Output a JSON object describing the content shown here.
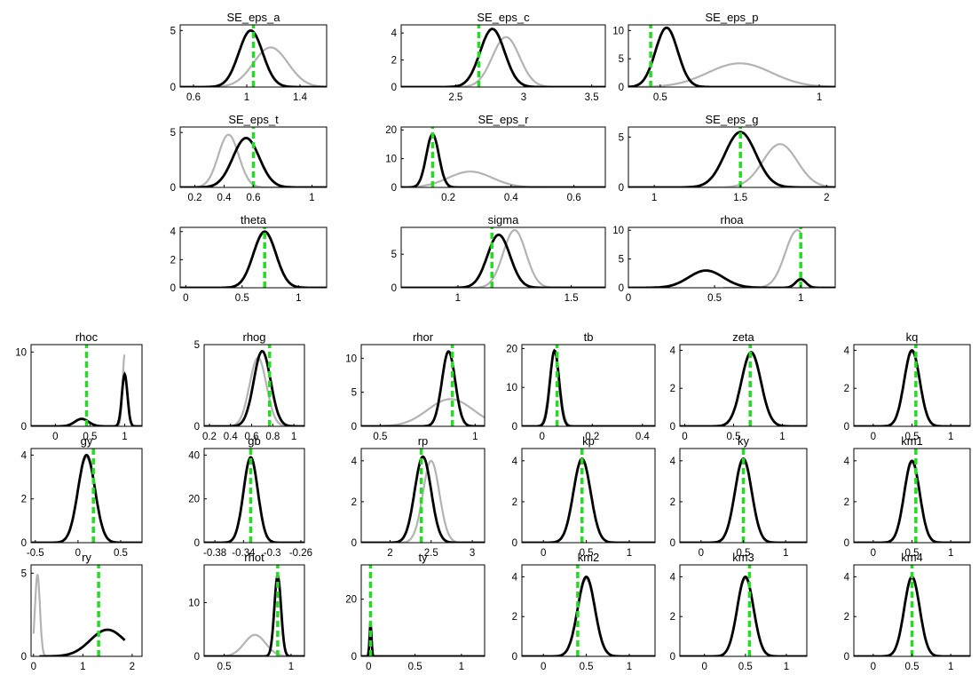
{
  "chart_data": [
    {
      "type": "line",
      "title": "SE_eps_a",
      "xticks": [
        "0.6",
        "1",
        "1.4"
      ],
      "yticks": [
        "0",
        "5"
      ],
      "xlim": [
        0.5,
        1.6
      ],
      "ylim": [
        0,
        5.5
      ],
      "mode": 1.05,
      "posterior": {
        "mu": 1.03,
        "sd": 0.09,
        "peak": 5.0
      },
      "prior": {
        "mu": 1.18,
        "sd": 0.13,
        "peak": 3.5
      }
    },
    {
      "type": "line",
      "title": "SE_eps_c",
      "xticks": [
        "2.5",
        "3",
        "3.5"
      ],
      "yticks": [
        "0",
        "2",
        "4"
      ],
      "xlim": [
        2.1,
        3.6
      ],
      "ylim": [
        0,
        4.6
      ],
      "mode": 2.67,
      "posterior": {
        "mu": 2.77,
        "sd": 0.09,
        "peak": 4.3
      },
      "prior": {
        "mu": 2.87,
        "sd": 0.1,
        "peak": 3.7
      }
    },
    {
      "type": "line",
      "title": "SE_eps_p",
      "xticks": [
        "0.5",
        "1"
      ],
      "yticks": [
        "0",
        "5",
        "10"
      ],
      "xlim": [
        0.4,
        1.05
      ],
      "ylim": [
        0,
        11
      ],
      "mode": 0.47,
      "posterior": {
        "mu": 0.52,
        "sd": 0.035,
        "peak": 10.5
      },
      "prior": {
        "mu": 0.75,
        "sd": 0.1,
        "peak": 4.2
      }
    },
    {
      "type": "line",
      "title": "SE_eps_t",
      "xticks": [
        "0.2",
        "0.4",
        "0.6",
        "1"
      ],
      "yticks": [
        "0",
        "5"
      ],
      "xlim": [
        0.1,
        1.1
      ],
      "ylim": [
        0,
        5.5
      ],
      "mode": 0.6,
      "posterior": {
        "mu": 0.55,
        "sd": 0.09,
        "peak": 4.5
      },
      "prior": {
        "mu": 0.43,
        "sd": 0.07,
        "peak": 4.8
      }
    },
    {
      "type": "line",
      "title": "SE_eps_r",
      "xticks": [
        "0.2",
        "0.4",
        "0.6"
      ],
      "yticks": [
        "0",
        "10",
        "20"
      ],
      "xlim": [
        0.05,
        0.7
      ],
      "ylim": [
        0,
        21
      ],
      "mode": 0.15,
      "posterior": {
        "mu": 0.15,
        "sd": 0.02,
        "peak": 18.5
      },
      "prior": {
        "mu": 0.27,
        "sd": 0.07,
        "peak": 5.5
      }
    },
    {
      "type": "line",
      "title": "SE_eps_g",
      "xticks": [
        "1",
        "1.5",
        "2"
      ],
      "yticks": [
        "0",
        "5"
      ],
      "xlim": [
        0.85,
        2.05
      ],
      "ylim": [
        0,
        6
      ],
      "mode": 1.5,
      "posterior": {
        "mu": 1.5,
        "sd": 0.09,
        "peak": 5.5
      },
      "prior": {
        "mu": 1.73,
        "sd": 0.1,
        "peak": 4.3
      }
    },
    {
      "type": "line",
      "title": "theta",
      "xticks": [
        "0",
        "0.5",
        "1"
      ],
      "yticks": [
        "0",
        "2",
        "4"
      ],
      "xlim": [
        -0.05,
        1.25
      ],
      "ylim": [
        0,
        4.3
      ],
      "mode": 0.7,
      "posterior": {
        "mu": 0.7,
        "sd": 0.1,
        "peak": 4.0
      },
      "prior": {
        "mu": 0.7,
        "sd": 0.1,
        "peak": 3.9
      }
    },
    {
      "type": "line",
      "title": "sigma",
      "xticks": [
        "1",
        "1.5"
      ],
      "yticks": [
        "0",
        "5"
      ],
      "xlim": [
        0.75,
        1.65
      ],
      "ylim": [
        0,
        9
      ],
      "mode": 1.15,
      "posterior": {
        "mu": 1.18,
        "sd": 0.05,
        "peak": 7.9
      },
      "prior": {
        "mu": 1.25,
        "sd": 0.05,
        "peak": 8.6
      }
    },
    {
      "type": "line",
      "title": "rhoa",
      "xticks": [
        "0",
        "0.5",
        "1"
      ],
      "yticks": [
        "0",
        "5",
        "10"
      ],
      "xlim": [
        0,
        1.2
      ],
      "ylim": [
        0,
        10.5
      ],
      "mode": 1.0,
      "posterior": {
        "mixture": [
          [
            0.45,
            0.1,
            3.0
          ],
          [
            1.0,
            0.03,
            1.5
          ]
        ]
      },
      "prior": {
        "mixture": [
          [
            0.98,
            0.07,
            10.0
          ]
        ],
        "xmin": 0.55,
        "xmax": 1.0
      }
    },
    {
      "type": "line",
      "title": "rhoc",
      "xticks": [
        "0",
        "0.5",
        "1"
      ],
      "yticks": [
        "0",
        "10"
      ],
      "xlim": [
        -0.35,
        1.25
      ],
      "ylim": [
        0,
        11
      ],
      "mode": 0.45,
      "posterior": {
        "mixture": [
          [
            0.38,
            0.1,
            1.0
          ],
          [
            1.0,
            0.04,
            7.0
          ]
        ]
      },
      "prior": {
        "mixture": [
          [
            1.0,
            0.03,
            9.6
          ]
        ],
        "xmin": 0.85,
        "xmax": 1.0
      }
    },
    {
      "type": "line",
      "title": "rhog",
      "xticks": [
        "0.2",
        "0.4",
        "0.6",
        "0.8",
        "1"
      ],
      "yticks": [
        "0",
        "5"
      ],
      "xlim": [
        0.15,
        1.1
      ],
      "ylim": [
        0,
        5
      ],
      "mode": 0.77,
      "posterior": {
        "mu": 0.7,
        "sd": 0.08,
        "peak": 4.6
      },
      "prior": {
        "mu": 0.66,
        "sd": 0.08,
        "peak": 4.2
      }
    },
    {
      "type": "line",
      "title": "rhor",
      "xticks": [
        "0.5",
        "1"
      ],
      "yticks": [
        "0",
        "5",
        "10"
      ],
      "xlim": [
        0.4,
        1.05
      ],
      "ylim": [
        0,
        12
      ],
      "mode": 0.88,
      "posterior": {
        "mu": 0.86,
        "sd": 0.035,
        "peak": 11.0
      },
      "prior": {
        "mu": 0.87,
        "sd": 0.12,
        "peak": 4.0
      }
    },
    {
      "type": "line",
      "title": "tb",
      "xticks": [
        "0",
        "0.2",
        "0.4"
      ],
      "yticks": [
        "0",
        "10",
        "20"
      ],
      "xlim": [
        -0.08,
        0.45
      ],
      "ylim": [
        0,
        21
      ],
      "mode": 0.06,
      "posterior": {
        "mu": 0.05,
        "sd": 0.018,
        "peak": 19.5
      },
      "prior": {
        "mu": 0.05,
        "sd": 0.02,
        "peak": 19.0
      }
    },
    {
      "type": "line",
      "title": "zeta",
      "xticks": [
        "0",
        "0.5",
        "1"
      ],
      "yticks": [
        "0",
        "2",
        "4"
      ],
      "xlim": [
        -0.05,
        1.25
      ],
      "ylim": [
        0,
        4.3
      ],
      "mode": 0.67,
      "posterior": {
        "mu": 0.68,
        "sd": 0.1,
        "peak": 3.9
      },
      "prior": {
        "mu": 0.68,
        "sd": 0.1,
        "peak": 3.8
      }
    },
    {
      "type": "line",
      "title": "kq",
      "xticks": [
        "0",
        "0.5",
        "1"
      ],
      "yticks": [
        "0",
        "2",
        "4"
      ],
      "xlim": [
        -0.25,
        1.25
      ],
      "ylim": [
        0,
        4.3
      ],
      "mode": 0.55,
      "posterior": {
        "mu": 0.5,
        "sd": 0.1,
        "peak": 4.0
      },
      "prior": {
        "mu": 0.5,
        "sd": 0.1,
        "peak": 3.9
      }
    },
    {
      "type": "line",
      "title": "gy",
      "xticks": [
        "-0.5",
        "0",
        "0.5"
      ],
      "yticks": [
        "0",
        "2",
        "4"
      ],
      "xlim": [
        -0.55,
        0.75
      ],
      "ylim": [
        0,
        4.3
      ],
      "mode": 0.18,
      "posterior": {
        "mu": 0.1,
        "sd": 0.1,
        "peak": 4.0
      },
      "prior": {
        "mu": 0.1,
        "sd": 0.1,
        "peak": 3.9
      }
    },
    {
      "type": "line",
      "title": "gb",
      "xticks": [
        "-0.38",
        "-0.34",
        "-0.3",
        "-0.26"
      ],
      "yticks": [
        "0",
        "20",
        "40"
      ],
      "xlim": [
        -0.395,
        -0.255
      ],
      "ylim": [
        0,
        43
      ],
      "mode": -0.33,
      "posterior": {
        "mu": -0.33,
        "sd": 0.01,
        "peak": 39
      },
      "prior": {
        "mu": -0.33,
        "sd": 0.01,
        "peak": 38
      }
    },
    {
      "type": "line",
      "title": "rp",
      "xticks": [
        "2",
        "2.5",
        "3"
      ],
      "yticks": [
        "0",
        "2",
        "4"
      ],
      "xlim": [
        1.65,
        3.15
      ],
      "ylim": [
        0,
        4.6
      ],
      "mode": 2.38,
      "posterior": {
        "mu": 2.4,
        "sd": 0.1,
        "peak": 4.2
      },
      "prior": {
        "mu": 2.5,
        "sd": 0.1,
        "peak": 4.0
      }
    },
    {
      "type": "line",
      "title": "kp",
      "xticks": [
        "0",
        "0.5",
        "1"
      ],
      "yticks": [
        "0",
        "2",
        "4"
      ],
      "xlim": [
        -0.25,
        1.3
      ],
      "ylim": [
        0,
        4.6
      ],
      "mode": 0.45,
      "posterior": {
        "mu": 0.45,
        "sd": 0.1,
        "peak": 4.1
      },
      "prior": {
        "mu": 0.45,
        "sd": 0.1,
        "peak": 4.0
      }
    },
    {
      "type": "line",
      "title": "ky",
      "xticks": [
        "0",
        "0.5",
        "1"
      ],
      "yticks": [
        "0",
        "2",
        "4"
      ],
      "xlim": [
        -0.25,
        1.25
      ],
      "ylim": [
        0,
        4.6
      ],
      "mode": 0.5,
      "posterior": {
        "mu": 0.5,
        "sd": 0.1,
        "peak": 4.1
      },
      "prior": {
        "mu": 0.5,
        "sd": 0.1,
        "peak": 4.0
      }
    },
    {
      "type": "line",
      "title": "km1",
      "xticks": [
        "0",
        "0.5",
        "1"
      ],
      "yticks": [
        "0",
        "2",
        "4"
      ],
      "xlim": [
        -0.25,
        1.25
      ],
      "ylim": [
        0,
        4.6
      ],
      "mode": 0.55,
      "posterior": {
        "mu": 0.5,
        "sd": 0.1,
        "peak": 4.0
      },
      "prior": {
        "mu": 0.5,
        "sd": 0.1,
        "peak": 3.9
      }
    },
    {
      "type": "line",
      "title": "ry",
      "xticks": [
        "0",
        "1",
        "2"
      ],
      "yticks": [
        "0",
        "5"
      ],
      "xlim": [
        -0.05,
        2.2
      ],
      "ylim": [
        0,
        5.5
      ],
      "mode": 1.32,
      "posterior": {
        "mu": 1.5,
        "sd": 0.35,
        "peak": 1.6,
        "xmin": 0.12,
        "xmax": 1.85
      },
      "prior": {
        "mixture": [
          [
            0.08,
            0.05,
            4.9
          ]
        ],
        "xmin": 0.0,
        "xmax": 0.6
      }
    },
    {
      "type": "line",
      "title": "rhot",
      "xticks": [
        "0.5",
        "1"
      ],
      "yticks": [
        "0",
        "10"
      ],
      "xlim": [
        0.35,
        1.1
      ],
      "ylim": [
        0,
        17
      ],
      "mode": 0.9,
      "posterior": {
        "mu": 0.9,
        "sd": 0.025,
        "peak": 15.0
      },
      "prior": {
        "mu": 0.73,
        "sd": 0.08,
        "peak": 4.0
      }
    },
    {
      "type": "line",
      "title": "ty",
      "xticks": [
        "0",
        "0.5",
        "1"
      ],
      "yticks": [
        "0",
        "20"
      ],
      "xlim": [
        -0.08,
        1.25
      ],
      "ylim": [
        0,
        32
      ],
      "mode": 0.02,
      "posterior": {
        "mu": 0.02,
        "sd": 0.01,
        "peak": 12.0
      },
      "prior": {
        "mu": 0.02,
        "sd": 0.01,
        "peak": 11.0
      }
    },
    {
      "type": "line",
      "title": "km2",
      "xticks": [
        "0",
        "0.5",
        "1"
      ],
      "yticks": [
        "0",
        "2",
        "4"
      ],
      "xlim": [
        -0.25,
        1.3
      ],
      "ylim": [
        0,
        4.6
      ],
      "mode": 0.4,
      "posterior": {
        "mu": 0.5,
        "sd": 0.1,
        "peak": 4.0
      },
      "prior": {
        "mu": 0.5,
        "sd": 0.1,
        "peak": 3.9
      }
    },
    {
      "type": "line",
      "title": "km3",
      "xticks": [
        "0",
        "0.5",
        "1"
      ],
      "yticks": [
        "0",
        "2",
        "4"
      ],
      "xlim": [
        -0.3,
        1.25
      ],
      "ylim": [
        0,
        4.6
      ],
      "mode": 0.55,
      "posterior": {
        "mu": 0.5,
        "sd": 0.1,
        "peak": 4.0
      },
      "prior": {
        "mu": 0.5,
        "sd": 0.1,
        "peak": 3.9
      }
    },
    {
      "type": "line",
      "title": "km4",
      "xticks": [
        "0",
        "0.5",
        "1"
      ],
      "yticks": [
        "0",
        "2",
        "4"
      ],
      "xlim": [
        -0.25,
        1.25
      ],
      "ylim": [
        0,
        4.6
      ],
      "mode": 0.5,
      "posterior": {
        "mu": 0.5,
        "sd": 0.1,
        "peak": 4.0
      },
      "prior": {
        "mu": 0.5,
        "sd": 0.1,
        "peak": 3.9
      }
    }
  ],
  "colors": {
    "posterior": "#000000",
    "prior": "#b3b3b3",
    "mode": "#22dd22"
  }
}
